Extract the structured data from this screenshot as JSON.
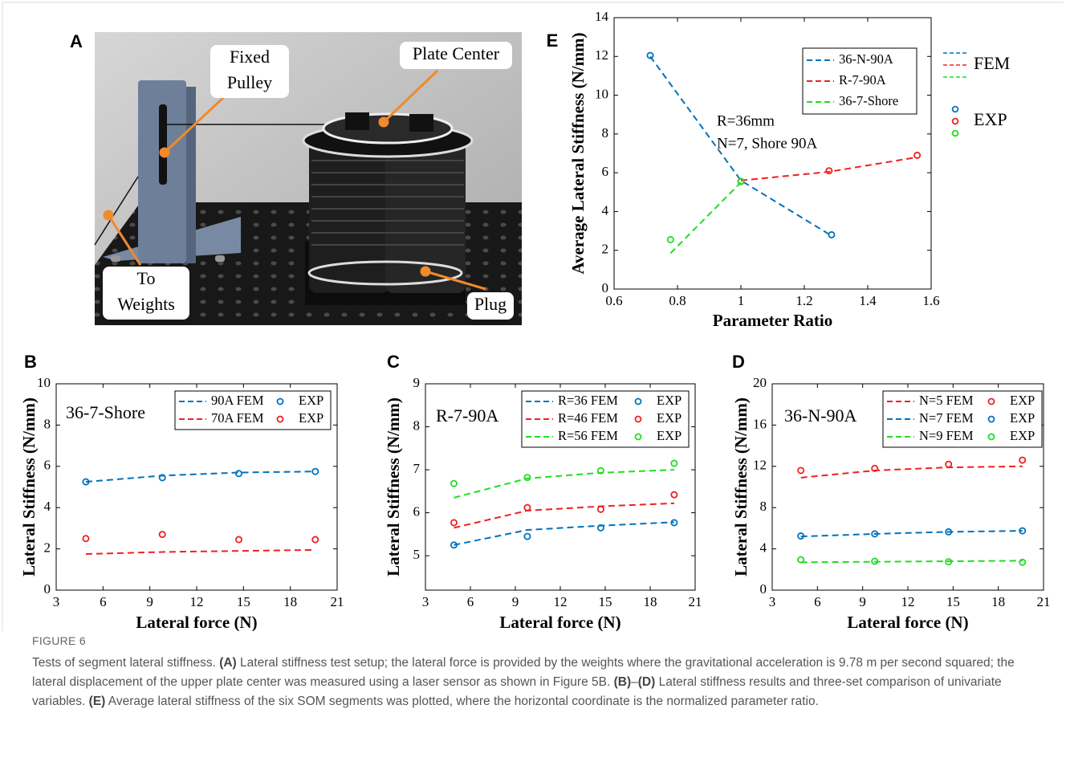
{
  "photo": {
    "label": "A",
    "annotations": [
      {
        "lines": [
          "Fixed",
          "Pulley"
        ]
      },
      {
        "lines": [
          "Plate Center"
        ]
      },
      {
        "lines": [
          "To",
          "Weights"
        ]
      },
      {
        "lines": [
          "Plug"
        ]
      }
    ]
  },
  "chart_data": [
    {
      "type": "line",
      "panel": "E",
      "xlabel": "Parameter Ratio",
      "ylabel": "Average Lateral Stiffness (N/mm)",
      "xlim": [
        0.6,
        1.6
      ],
      "xticks": [
        0.6,
        0.8,
        1,
        1.2,
        1.4,
        1.6
      ],
      "ylim": [
        0,
        14
      ],
      "yticks": [
        0,
        2,
        4,
        6,
        8,
        10,
        12,
        14
      ],
      "legend": "upper right",
      "annotations": [
        "R=36mm",
        "N=7, Shore 90A"
      ],
      "legend_groups": [
        {
          "label": "FEM",
          "style": "dashed"
        },
        {
          "label": "EXP",
          "style": "circle"
        }
      ],
      "series": [
        {
          "name": "36-N-90A",
          "color": "#0072bd",
          "style": "dashed",
          "x": [
            0.714,
            1,
            1.286
          ],
          "values": [
            12.0,
            5.6,
            2.75
          ]
        },
        {
          "name": "R-7-90A",
          "color": "#f02020",
          "style": "dashed",
          "x": [
            1,
            1.278,
            1.556
          ],
          "values": [
            5.6,
            6.05,
            6.8
          ]
        },
        {
          "name": "36-7-Shore",
          "color": "#22dd22",
          "style": "dashed",
          "x": [
            0.778,
            1
          ],
          "values": [
            1.85,
            5.5
          ]
        },
        {
          "color": "#0072bd",
          "style": "circle",
          "x": [
            0.714,
            1,
            1.286
          ],
          "values": [
            12.05,
            5.55,
            2.8
          ]
        },
        {
          "color": "#f02020",
          "style": "circle",
          "x": [
            1,
            1.278,
            1.556
          ],
          "values": [
            5.55,
            6.1,
            6.9
          ]
        },
        {
          "color": "#22dd22",
          "style": "circle",
          "x": [
            0.778,
            1
          ],
          "values": [
            2.55,
            5.55
          ]
        }
      ]
    },
    {
      "type": "line",
      "panel": "B",
      "xlabel": "Lateral force (N)",
      "ylabel": "Lateral Stiffness (N/mm)",
      "xlim": [
        3,
        21
      ],
      "xticks": [
        3,
        6,
        9,
        12,
        15,
        18,
        21
      ],
      "ylim": [
        0,
        10
      ],
      "yticks": [
        0,
        2,
        4,
        6,
        8,
        10
      ],
      "legend": "upper right",
      "annotations": [
        "36-7-Shore"
      ],
      "x": [
        4.9,
        9.8,
        14.7,
        19.6
      ],
      "series": [
        {
          "name": "90A FEM",
          "color": "#0072bd",
          "style": "dashed",
          "values": [
            5.25,
            5.55,
            5.7,
            5.75
          ]
        },
        {
          "name": "EXP",
          "color": "#0072bd",
          "style": "circle",
          "values": [
            5.25,
            5.45,
            5.65,
            5.75
          ]
        },
        {
          "name": "70A FEM",
          "color": "#f02020",
          "style": "dashed",
          "values": [
            1.75,
            1.85,
            1.9,
            1.95
          ]
        },
        {
          "name": "EXP",
          "color": "#f02020",
          "style": "circle",
          "values": [
            2.5,
            2.7,
            2.45,
            2.45
          ]
        }
      ]
    },
    {
      "type": "line",
      "panel": "C",
      "xlabel": "Lateral force (N)",
      "ylabel": "Lateral Stiffness (N/mm)",
      "xlim": [
        3,
        21
      ],
      "xticks": [
        3,
        6,
        9,
        12,
        15,
        18,
        21
      ],
      "ylim": [
        4.2,
        9
      ],
      "yticks": [
        5,
        6,
        7,
        8,
        9
      ],
      "legend": "upper right",
      "annotations": [
        "R-7-90A"
      ],
      "x": [
        4.9,
        9.8,
        14.7,
        19.6
      ],
      "series": [
        {
          "name": "R=36 FEM",
          "color": "#0072bd",
          "style": "dashed",
          "values": [
            5.25,
            5.6,
            5.7,
            5.78
          ]
        },
        {
          "name": "EXP",
          "color": "#0072bd",
          "style": "circle",
          "values": [
            5.25,
            5.45,
            5.65,
            5.77
          ]
        },
        {
          "name": "R=46 FEM",
          "color": "#f02020",
          "style": "dashed",
          "values": [
            5.65,
            6.05,
            6.15,
            6.22
          ]
        },
        {
          "name": "EXP",
          "color": "#f02020",
          "style": "circle",
          "values": [
            5.77,
            6.12,
            6.08,
            6.42
          ]
        },
        {
          "name": "R=56 FEM",
          "color": "#22dd22",
          "style": "dashed",
          "values": [
            6.35,
            6.8,
            6.93,
            7.0
          ]
        },
        {
          "name": "EXP",
          "color": "#22dd22",
          "style": "circle",
          "values": [
            6.68,
            6.82,
            6.98,
            7.15
          ]
        }
      ]
    },
    {
      "type": "line",
      "panel": "D",
      "xlabel": "Lateral force (N)",
      "ylabel": "Lateral Stiffness (N/mm)",
      "xlim": [
        3,
        21
      ],
      "xticks": [
        3,
        6,
        9,
        12,
        15,
        18,
        21
      ],
      "ylim": [
        0,
        20
      ],
      "yticks": [
        0,
        4,
        8,
        12,
        16,
        20
      ],
      "legend": "upper right",
      "annotations": [
        "36-N-90A"
      ],
      "x": [
        4.9,
        9.8,
        14.7,
        19.6
      ],
      "series": [
        {
          "name": "N=5 FEM",
          "color": "#f02020",
          "style": "dashed",
          "values": [
            10.9,
            11.6,
            11.9,
            12.0
          ]
        },
        {
          "name": "EXP",
          "color": "#f02020",
          "style": "circle",
          "values": [
            11.6,
            11.8,
            12.2,
            12.6
          ]
        },
        {
          "name": "N=7 FEM",
          "color": "#0072bd",
          "style": "dashed",
          "values": [
            5.2,
            5.45,
            5.65,
            5.75
          ]
        },
        {
          "name": "EXP",
          "color": "#0072bd",
          "style": "circle",
          "values": [
            5.25,
            5.45,
            5.65,
            5.75
          ]
        },
        {
          "name": "N=9 FEM",
          "color": "#22dd22",
          "style": "dashed",
          "values": [
            2.7,
            2.75,
            2.8,
            2.85
          ]
        },
        {
          "name": "EXP",
          "color": "#22dd22",
          "style": "circle",
          "values": [
            2.95,
            2.8,
            2.75,
            2.7
          ]
        }
      ]
    }
  ],
  "caption": {
    "figure": "FIGURE 6",
    "runs": [
      {
        "text": "Tests of segment lateral stiffness. ",
        "bold": false
      },
      {
        "text": "(A)",
        "bold": true
      },
      {
        "text": " Lateral stiffness test setup; the lateral force is provided by the weights where the gravitational acceleration is 9.78 m per second squared; the lateral displacement of the upper plate center was measured using a laser sensor as shown in Figure 5B. ",
        "bold": false
      },
      {
        "text": "(B)",
        "bold": true
      },
      {
        "text": "–",
        "bold": false
      },
      {
        "text": "(D)",
        "bold": true
      },
      {
        "text": " Lateral stiffness results and three-set comparison of univariate variables. ",
        "bold": false
      },
      {
        "text": "(E)",
        "bold": true
      },
      {
        "text": " Average lateral stiffness of the six SOM segments was plotted, where the horizontal coordinate is the normalized parameter ratio.",
        "bold": false
      }
    ]
  }
}
